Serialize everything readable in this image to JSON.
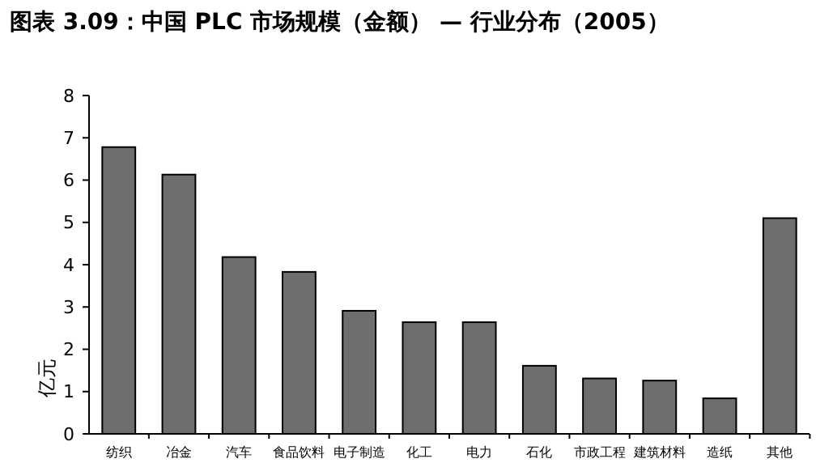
{
  "chart_data": {
    "type": "bar",
    "title": "图表 3.09：中国 PLC 市场规模（金额） — 行业分布（2005）",
    "ylabel": "亿元",
    "categories": [
      "纺织",
      "冶金",
      "汽车",
      "食品饮料",
      "电子制造",
      "化工",
      "电力",
      "石化",
      "市政工程",
      "建筑材料",
      "造纸",
      "其他"
    ],
    "values": [
      6.78,
      6.13,
      4.18,
      3.83,
      2.91,
      2.64,
      2.64,
      1.61,
      1.31,
      1.26,
      0.84,
      5.1
    ],
    "color": "#6e6e6e",
    "ylim": [
      0,
      8
    ],
    "yticks": [
      0,
      1,
      2,
      3,
      4,
      5,
      6,
      7,
      8
    ],
    "grid": false
  }
}
